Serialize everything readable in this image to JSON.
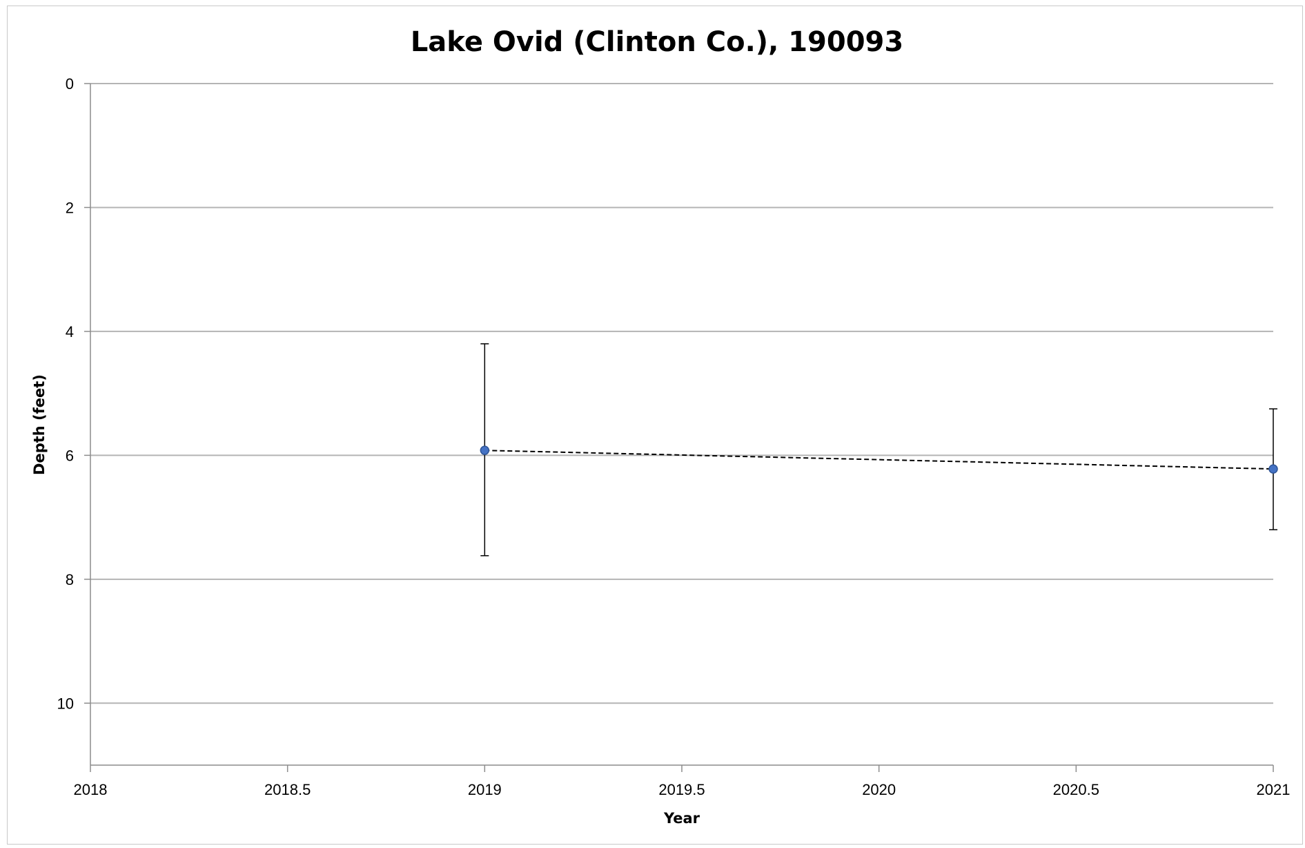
{
  "chart_data": {
    "type": "scatter",
    "title": "Lake Ovid (Clinton Co.), 190093",
    "xlabel": "Year",
    "ylabel": "Depth (feet)",
    "xlim": [
      2018,
      2021
    ],
    "ylim": [
      0,
      11
    ],
    "y_inverted": true,
    "grid": "horizontal",
    "x_ticks": [
      2018,
      2018.5,
      2019,
      2019.5,
      2020,
      2020.5,
      2021
    ],
    "x_tick_labels": [
      "2018",
      "2018.5",
      "2019",
      "2019.5",
      "2020",
      "2020.5",
      "2021"
    ],
    "y_ticks": [
      0,
      2,
      4,
      6,
      8,
      10
    ],
    "y_tick_labels": [
      "0",
      "2",
      "4",
      "6",
      "8",
      "10"
    ],
    "series": [
      {
        "x": [
          2019,
          2021
        ],
        "y": [
          5.92,
          6.22
        ],
        "err_low": [
          4.2,
          5.25
        ],
        "err_high": [
          7.62,
          7.2
        ],
        "marker_color": "#4472C4",
        "line_color": "#000000",
        "line_style": "dashed"
      }
    ]
  }
}
